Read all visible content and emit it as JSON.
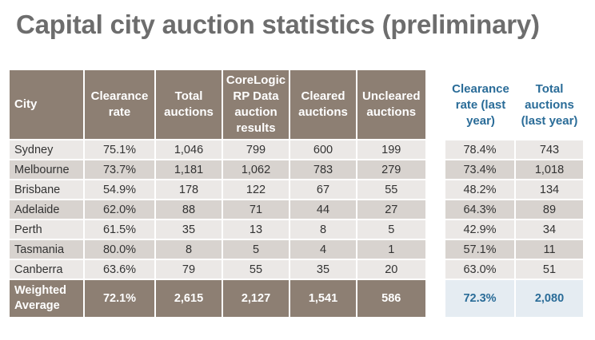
{
  "title": "Capital city auction statistics (preliminary)",
  "columns": {
    "city": "City",
    "clearance_rate": "Clearance rate",
    "total_auctions": "Total auctions",
    "corelogic": "CoreLogic RP Data auction results",
    "cleared": "Cleared auctions",
    "uncleared": "Uncleared auctions",
    "clearance_last_year": "Clearance rate (last year)",
    "total_last_year": "Total auctions (last year)"
  },
  "rows": [
    {
      "city": "Sydney",
      "clearance_rate": "75.1%",
      "total_auctions": "1,046",
      "corelogic": "799",
      "cleared": "600",
      "uncleared": "199",
      "clearance_last_year": "78.4%",
      "total_last_year": "743"
    },
    {
      "city": "Melbourne",
      "clearance_rate": "73.7%",
      "total_auctions": "1,181",
      "corelogic": "1,062",
      "cleared": "783",
      "uncleared": "279",
      "clearance_last_year": "73.4%",
      "total_last_year": "1,018"
    },
    {
      "city": "Brisbane",
      "clearance_rate": "54.9%",
      "total_auctions": "178",
      "corelogic": "122",
      "cleared": "67",
      "uncleared": "55",
      "clearance_last_year": "48.2%",
      "total_last_year": "134"
    },
    {
      "city": "Adelaide",
      "clearance_rate": "62.0%",
      "total_auctions": "88",
      "corelogic": "71",
      "cleared": "44",
      "uncleared": "27",
      "clearance_last_year": "64.3%",
      "total_last_year": "89"
    },
    {
      "city": "Perth",
      "clearance_rate": "61.5%",
      "total_auctions": "35",
      "corelogic": "13",
      "cleared": "8",
      "uncleared": "5",
      "clearance_last_year": "42.9%",
      "total_last_year": "34"
    },
    {
      "city": "Tasmania",
      "clearance_rate": "80.0%",
      "total_auctions": "8",
      "corelogic": "5",
      "cleared": "4",
      "uncleared": "1",
      "clearance_last_year": "57.1%",
      "total_last_year": "11"
    },
    {
      "city": "Canberra",
      "clearance_rate": "63.6%",
      "total_auctions": "79",
      "corelogic": "55",
      "cleared": "35",
      "uncleared": "20",
      "clearance_last_year": "63.0%",
      "total_last_year": "51"
    }
  ],
  "footer": {
    "label": "Weighted Average",
    "clearance_rate": "72.1%",
    "total_auctions": "2,615",
    "corelogic": "2,127",
    "cleared": "1,541",
    "uncleared": "586",
    "clearance_last_year": "72.3%",
    "total_last_year": "2,080"
  },
  "colors": {
    "header_bg": "#8d7f73",
    "row_light": "#ebe8e6",
    "row_dark": "#d8d3cf",
    "accent_blue": "#2a6c98",
    "title_gray": "#6d6d6d"
  }
}
